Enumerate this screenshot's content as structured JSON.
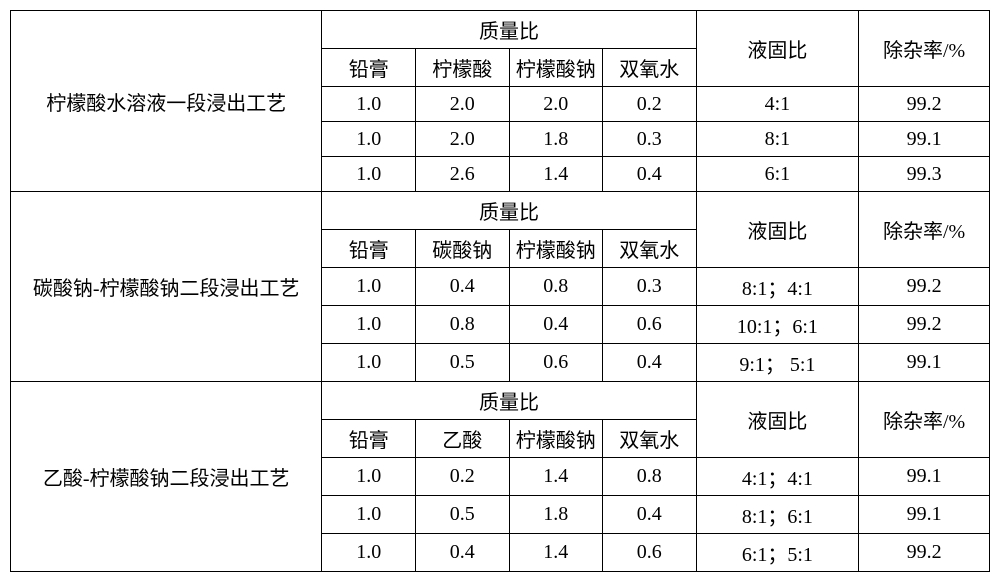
{
  "headers": {
    "mass_ratio": "质量比",
    "liquid_solid": "液固比",
    "removal_rate": "除杂率/%"
  },
  "sections": [
    {
      "title": "柠檬酸水溶液一段浸出工艺",
      "cols": [
        "铅膏",
        "柠檬酸",
        "柠檬酸钠",
        "双氧水"
      ],
      "rows": [
        {
          "v": [
            "1.0",
            "2.0",
            "2.0",
            "0.2"
          ],
          "ls": "4:1",
          "rr": "99.2"
        },
        {
          "v": [
            "1.0",
            "2.0",
            "1.8",
            "0.3"
          ],
          "ls": "8:1",
          "rr": "99.1"
        },
        {
          "v": [
            "1.0",
            "2.6",
            "1.4",
            "0.4"
          ],
          "ls": "6:1",
          "rr": "99.3"
        }
      ]
    },
    {
      "title": "碳酸钠-柠檬酸钠二段浸出工艺",
      "cols": [
        "铅膏",
        "碳酸钠",
        "柠檬酸钠",
        "双氧水"
      ],
      "rows": [
        {
          "v": [
            "1.0",
            "0.4",
            "0.8",
            "0.3"
          ],
          "ls": "8:1；4:1",
          "rr": "99.2"
        },
        {
          "v": [
            "1.0",
            "0.8",
            "0.4",
            "0.6"
          ],
          "ls": "10:1；6:1",
          "rr": "99.2"
        },
        {
          "v": [
            "1.0",
            "0.5",
            "0.6",
            "0.4"
          ],
          "ls": "9:1； 5:1",
          "rr": "99.1"
        }
      ]
    },
    {
      "title": "乙酸-柠檬酸钠二段浸出工艺",
      "cols": [
        "铅膏",
        "乙酸",
        "柠檬酸钠",
        "双氧水"
      ],
      "rows": [
        {
          "v": [
            "1.0",
            "0.2",
            "1.4",
            "0.8"
          ],
          "ls": "4:1；4:1",
          "rr": "99.1"
        },
        {
          "v": [
            "1.0",
            "0.5",
            "1.8",
            "0.4"
          ],
          "ls": "8:1；6:1",
          "rr": "99.1"
        },
        {
          "v": [
            "1.0",
            "0.4",
            "1.4",
            "0.6"
          ],
          "ls": "6:1；5:1",
          "rr": "99.2"
        }
      ]
    }
  ]
}
